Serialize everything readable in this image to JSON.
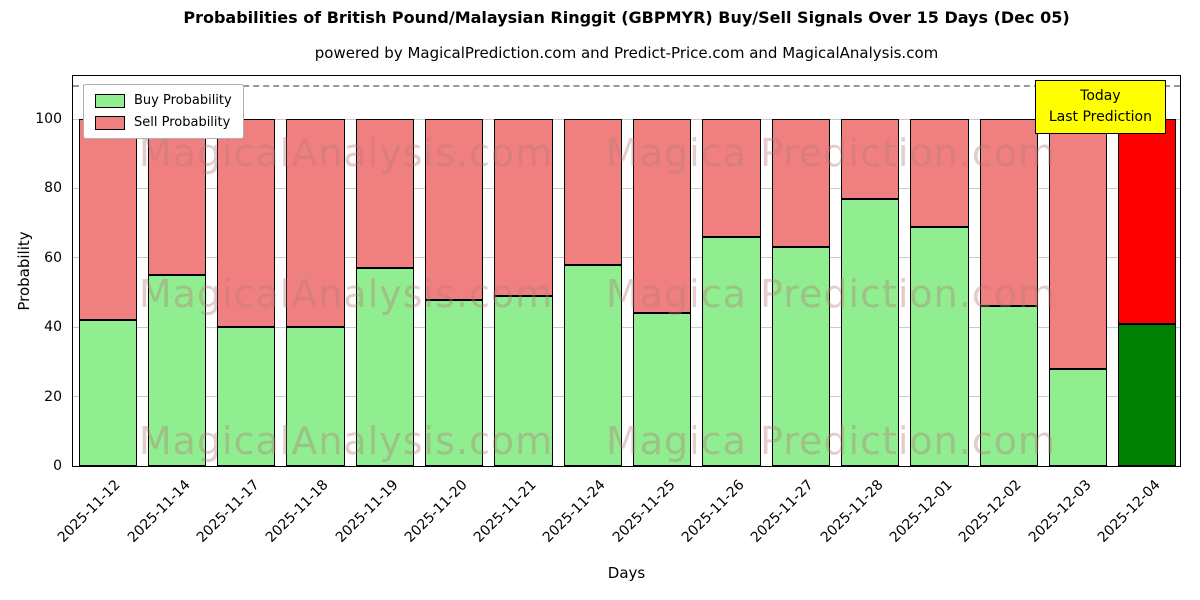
{
  "chart_data": {
    "type": "bar",
    "stacked": true,
    "title": "Probabilities of British Pound/Malaysian Ringgit (GBPMYR) Buy/Sell Signals Over 15 Days (Dec 05)",
    "subtitle": "powered by MagicalPrediction.com and Predict-Price.com and MagicalAnalysis.com",
    "xlabel": "Days",
    "ylabel": "Probability",
    "categories": [
      "2025-11-12",
      "2025-11-14",
      "2025-11-17",
      "2025-11-18",
      "2025-11-19",
      "2025-11-20",
      "2025-11-21",
      "2025-11-24",
      "2025-11-25",
      "2025-11-26",
      "2025-11-27",
      "2025-11-28",
      "2025-12-01",
      "2025-12-02",
      "2025-12-03",
      "2025-12-04"
    ],
    "series": [
      {
        "name": "Buy Probability",
        "color": "#90EE90",
        "values": [
          42,
          55,
          40,
          40,
          57,
          48,
          49,
          58,
          44,
          66,
          63,
          77,
          69,
          46,
          28,
          41
        ]
      },
      {
        "name": "Sell Probability",
        "color": "#F08080",
        "values": [
          58,
          45,
          60,
          60,
          43,
          52,
          51,
          42,
          56,
          34,
          37,
          23,
          31,
          54,
          72,
          59
        ]
      }
    ],
    "today_colors": {
      "buy": "#008000",
      "sell": "#FF0000"
    },
    "yticks": [
      0,
      20,
      40,
      60,
      80,
      100
    ],
    "ylim": [
      0,
      113
    ],
    "dashed_line_y": 110,
    "grid": true,
    "legend_position": "top-left",
    "annotation_line1": "Today",
    "annotation_line2": "Last Prediction",
    "watermark_left": "MagicalAnalysis.com",
    "watermark_right": "Magica Prediction.com"
  }
}
